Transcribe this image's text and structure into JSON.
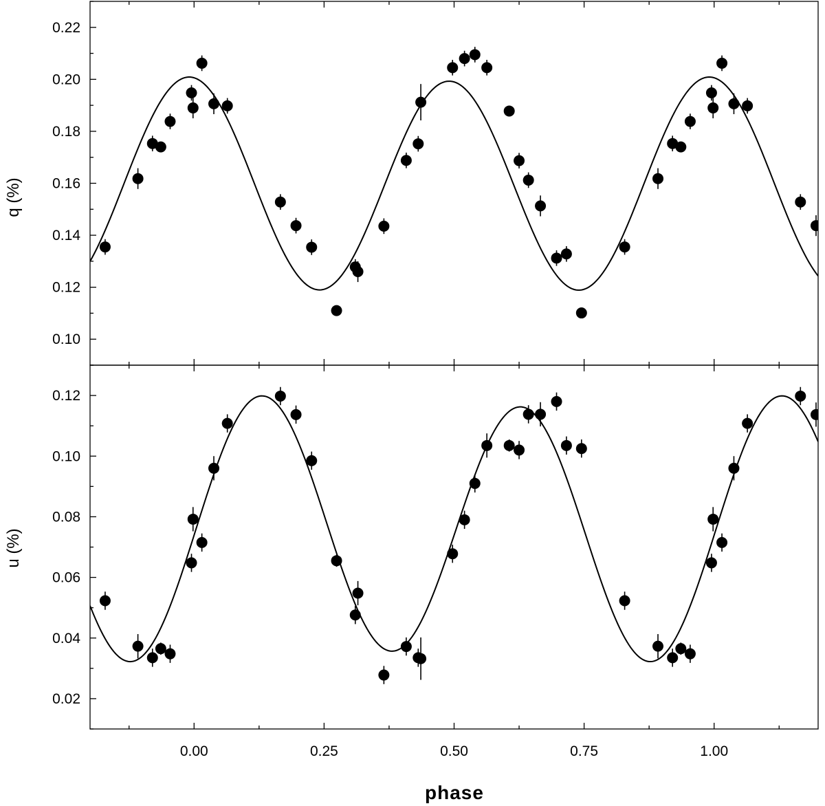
{
  "chart_data": [
    {
      "panel": "top",
      "type": "scatter",
      "ylabel": "q (%)",
      "xlim": [
        -0.2,
        1.2
      ],
      "ylim": [
        0.09,
        0.23
      ],
      "xticks": [
        0.0,
        0.25,
        0.5,
        0.75,
        1.0
      ],
      "xtick_labels": [
        "0.00",
        "0.25",
        "0.50",
        "0.75",
        "1.00"
      ],
      "yticks": [
        0.1,
        0.12,
        0.14,
        0.16,
        0.18,
        0.2,
        0.22
      ],
      "ytick_labels": [
        "0.10",
        "0.12",
        "0.14",
        "0.16",
        "0.18",
        "0.20",
        "0.22"
      ],
      "model": {
        "mean": 0.1595,
        "a1": 0.0008,
        "b1": 0.0,
        "a2": 0.0403,
        "b2": -0.0048
      },
      "points": [
        {
          "x": -0.171,
          "y": 0.1355,
          "e": 0.003
        },
        {
          "x": -0.108,
          "y": 0.1618,
          "e": 0.004
        },
        {
          "x": -0.08,
          "y": 0.1753,
          "e": 0.003
        },
        {
          "x": -0.064,
          "y": 0.174,
          "e": 0.002
        },
        {
          "x": -0.046,
          "y": 0.1838,
          "e": 0.003
        },
        {
          "x": -0.005,
          "y": 0.1948,
          "e": 0.003
        },
        {
          "x": -0.002,
          "y": 0.189,
          "e": 0.004
        },
        {
          "x": 0.015,
          "y": 0.2062,
          "e": 0.003
        },
        {
          "x": 0.038,
          "y": 0.1906,
          "e": 0.004
        },
        {
          "x": 0.064,
          "y": 0.1898,
          "e": 0.003
        },
        {
          "x": 0.166,
          "y": 0.1528,
          "e": 0.003
        },
        {
          "x": 0.196,
          "y": 0.1437,
          "e": 0.003
        },
        {
          "x": 0.226,
          "y": 0.1354,
          "e": 0.003
        },
        {
          "x": 0.274,
          "y": 0.111,
          "e": 0.002
        },
        {
          "x": 0.31,
          "y": 0.1278,
          "e": 0.003
        },
        {
          "x": 0.315,
          "y": 0.126,
          "e": 0.004
        },
        {
          "x": 0.365,
          "y": 0.1435,
          "e": 0.003
        },
        {
          "x": 0.408,
          "y": 0.1688,
          "e": 0.003
        },
        {
          "x": 0.431,
          "y": 0.1752,
          "e": 0.003
        },
        {
          "x": 0.436,
          "y": 0.1912,
          "e": 0.007
        },
        {
          "x": 0.497,
          "y": 0.2045,
          "e": 0.003
        },
        {
          "x": 0.52,
          "y": 0.208,
          "e": 0.003
        },
        {
          "x": 0.54,
          "y": 0.2095,
          "e": 0.003
        },
        {
          "x": 0.563,
          "y": 0.2045,
          "e": 0.003
        },
        {
          "x": 0.606,
          "y": 0.1878,
          "e": 0.002
        },
        {
          "x": 0.625,
          "y": 0.1687,
          "e": 0.003
        },
        {
          "x": 0.643,
          "y": 0.1612,
          "e": 0.003
        },
        {
          "x": 0.666,
          "y": 0.1513,
          "e": 0.004
        },
        {
          "x": 0.697,
          "y": 0.1312,
          "e": 0.003
        },
        {
          "x": 0.716,
          "y": 0.1328,
          "e": 0.003
        },
        {
          "x": 0.745,
          "y": 0.1101,
          "e": 0.002
        },
        {
          "x": 0.828,
          "y": 0.1355,
          "e": 0.003
        },
        {
          "x": 0.892,
          "y": 0.1618,
          "e": 0.004
        },
        {
          "x": 0.92,
          "y": 0.1753,
          "e": 0.003
        },
        {
          "x": 0.936,
          "y": 0.174,
          "e": 0.002
        },
        {
          "x": 0.954,
          "y": 0.1838,
          "e": 0.003
        },
        {
          "x": 0.995,
          "y": 0.1948,
          "e": 0.003
        },
        {
          "x": 0.998,
          "y": 0.189,
          "e": 0.004
        },
        {
          "x": 1.015,
          "y": 0.2062,
          "e": 0.003
        },
        {
          "x": 1.038,
          "y": 0.1906,
          "e": 0.004
        },
        {
          "x": 1.064,
          "y": 0.1898,
          "e": 0.003
        },
        {
          "x": 1.166,
          "y": 0.1528,
          "e": 0.003
        },
        {
          "x": 1.196,
          "y": 0.1437,
          "e": 0.004
        }
      ]
    },
    {
      "panel": "bottom",
      "type": "scatter",
      "ylabel": "u (%)",
      "xlabel": "phase",
      "xlim": [
        -0.2,
        1.2
      ],
      "ylim": [
        0.01,
        0.13
      ],
      "xticks": [
        0.0,
        0.25,
        0.5,
        0.75,
        1.0
      ],
      "xtick_labels": [
        "0.00",
        "0.25",
        "0.50",
        "0.75",
        "1.00"
      ],
      "yticks": [
        0.02,
        0.04,
        0.06,
        0.08,
        0.1,
        0.12
      ],
      "ytick_labels": [
        "0.02",
        "0.04",
        "0.06",
        "0.08",
        "0.10",
        "0.12"
      ],
      "model": {
        "mean": 0.076,
        "a1": 0.0,
        "b1": 0.0025,
        "a2": -0.0021,
        "b2": 0.042
      },
      "points": [
        {
          "x": -0.171,
          "y": 0.0523,
          "e": 0.003
        },
        {
          "x": -0.108,
          "y": 0.0373,
          "e": 0.004
        },
        {
          "x": -0.08,
          "y": 0.0335,
          "e": 0.003
        },
        {
          "x": -0.064,
          "y": 0.0365,
          "e": 0.002
        },
        {
          "x": -0.046,
          "y": 0.0348,
          "e": 0.003
        },
        {
          "x": -0.005,
          "y": 0.0648,
          "e": 0.003
        },
        {
          "x": -0.002,
          "y": 0.0792,
          "e": 0.004
        },
        {
          "x": 0.015,
          "y": 0.0715,
          "e": 0.003
        },
        {
          "x": 0.038,
          "y": 0.096,
          "e": 0.004
        },
        {
          "x": 0.064,
          "y": 0.1108,
          "e": 0.003
        },
        {
          "x": 0.166,
          "y": 0.1198,
          "e": 0.003
        },
        {
          "x": 0.196,
          "y": 0.1137,
          "e": 0.003
        },
        {
          "x": 0.226,
          "y": 0.0985,
          "e": 0.003
        },
        {
          "x": 0.274,
          "y": 0.0655,
          "e": 0.002
        },
        {
          "x": 0.31,
          "y": 0.0476,
          "e": 0.003
        },
        {
          "x": 0.315,
          "y": 0.0548,
          "e": 0.004
        },
        {
          "x": 0.365,
          "y": 0.0278,
          "e": 0.003
        },
        {
          "x": 0.408,
          "y": 0.0372,
          "e": 0.003
        },
        {
          "x": 0.431,
          "y": 0.0335,
          "e": 0.003
        },
        {
          "x": 0.436,
          "y": 0.0332,
          "e": 0.007
        },
        {
          "x": 0.497,
          "y": 0.0678,
          "e": 0.003
        },
        {
          "x": 0.52,
          "y": 0.079,
          "e": 0.003
        },
        {
          "x": 0.54,
          "y": 0.091,
          "e": 0.003
        },
        {
          "x": 0.563,
          "y": 0.1035,
          "e": 0.004
        },
        {
          "x": 0.606,
          "y": 0.1035,
          "e": 0.002
        },
        {
          "x": 0.625,
          "y": 0.102,
          "e": 0.003
        },
        {
          "x": 0.643,
          "y": 0.1138,
          "e": 0.003
        },
        {
          "x": 0.666,
          "y": 0.1138,
          "e": 0.004
        },
        {
          "x": 0.697,
          "y": 0.118,
          "e": 0.003
        },
        {
          "x": 0.716,
          "y": 0.1035,
          "e": 0.003
        },
        {
          "x": 0.745,
          "y": 0.1025,
          "e": 0.003
        },
        {
          "x": 0.828,
          "y": 0.0523,
          "e": 0.003
        },
        {
          "x": 0.892,
          "y": 0.0373,
          "e": 0.004
        },
        {
          "x": 0.92,
          "y": 0.0335,
          "e": 0.003
        },
        {
          "x": 0.936,
          "y": 0.0365,
          "e": 0.002
        },
        {
          "x": 0.954,
          "y": 0.0348,
          "e": 0.003
        },
        {
          "x": 0.995,
          "y": 0.0648,
          "e": 0.003
        },
        {
          "x": 0.998,
          "y": 0.0792,
          "e": 0.004
        },
        {
          "x": 1.015,
          "y": 0.0715,
          "e": 0.003
        },
        {
          "x": 1.038,
          "y": 0.096,
          "e": 0.004
        },
        {
          "x": 1.064,
          "y": 0.1108,
          "e": 0.003
        },
        {
          "x": 1.166,
          "y": 0.1198,
          "e": 0.003
        },
        {
          "x": 1.196,
          "y": 0.1137,
          "e": 0.004
        }
      ]
    }
  ]
}
